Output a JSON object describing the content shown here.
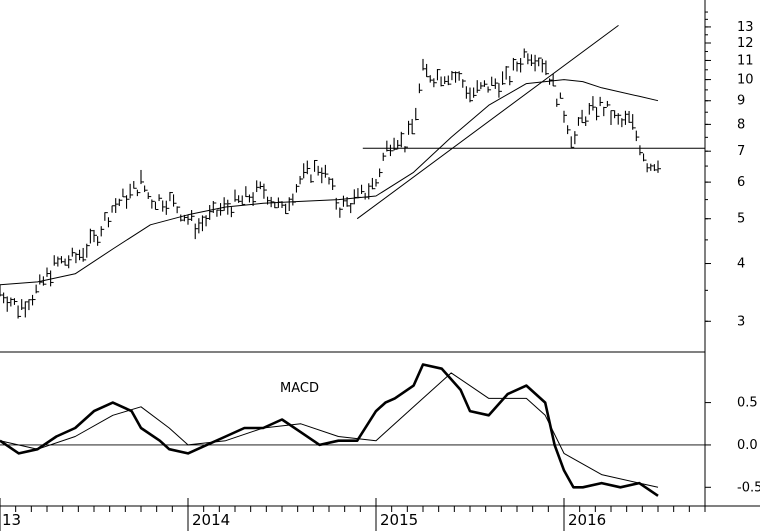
{
  "chart_data": [
    {
      "type": "bar",
      "subtype": "ohlc-price",
      "scale": "log",
      "ylim": [
        2.6,
        14.5
      ],
      "yticks": [
        "13",
        "12",
        "11",
        "10",
        "9",
        "8",
        "7",
        "6",
        "5",
        "4",
        "3"
      ],
      "x_labels": [
        "13",
        "2014",
        "2015",
        "2016"
      ],
      "x_label_pos": [
        2013.0,
        2014.0,
        2015.0,
        2016.0
      ],
      "xlim": [
        2013.0,
        2016.75
      ],
      "series": [
        {
          "role": "price",
          "x": [
            2013.0,
            2013.1,
            2013.2,
            2013.3,
            2013.4,
            2013.5,
            2013.6,
            2013.7,
            2013.75,
            2013.8,
            2013.9,
            2014.0,
            2014.05,
            2014.1,
            2014.2,
            2014.3,
            2014.4,
            2014.5,
            2014.6,
            2014.7,
            2014.75,
            2014.8,
            2014.9,
            2015.0,
            2015.05,
            2015.1,
            2015.15,
            2015.2,
            2015.25,
            2015.3,
            2015.4,
            2015.45,
            2015.5,
            2015.6,
            2015.7,
            2015.8,
            2015.85,
            2015.9,
            2015.95,
            2016.0,
            2016.05,
            2016.1,
            2016.2,
            2016.3,
            2016.35,
            2016.4,
            2016.45,
            2016.5
          ],
          "values": [
            3.5,
            3.2,
            3.5,
            4.0,
            4.1,
            4.5,
            5.3,
            5.7,
            6.0,
            5.5,
            5.5,
            5.0,
            4.8,
            5.0,
            5.3,
            5.5,
            5.8,
            5.2,
            6.1,
            6.5,
            6.0,
            5.3,
            5.5,
            6.0,
            7.0,
            7.6,
            7.2,
            8.0,
            10.4,
            10.2,
            10.3,
            10.0,
            9.3,
            9.7,
            10.0,
            11.5,
            11.3,
            10.8,
            9.5,
            8.5,
            7.3,
            8.3,
            8.8,
            8.0,
            8.2,
            7.3,
            6.5,
            6.7
          ]
        },
        {
          "role": "moving-average",
          "x": [
            2013.0,
            2013.2,
            2013.4,
            2013.6,
            2013.8,
            2014.0,
            2014.2,
            2014.4,
            2014.6,
            2014.8,
            2015.0,
            2015.2,
            2015.4,
            2015.6,
            2015.8,
            2016.0,
            2016.1,
            2016.2,
            2016.4,
            2016.5
          ],
          "values": [
            3.6,
            3.65,
            3.8,
            4.3,
            4.85,
            5.1,
            5.3,
            5.4,
            5.45,
            5.5,
            5.6,
            6.3,
            7.5,
            8.8,
            9.8,
            10.0,
            9.9,
            9.6,
            9.2,
            9.0
          ]
        },
        {
          "role": "trendline",
          "x": [
            2014.9,
            2016.29
          ],
          "values": [
            5.0,
            13.1
          ]
        },
        {
          "role": "resistance",
          "x": [
            2014.93,
            2016.75
          ],
          "values": [
            7.1,
            7.1
          ]
        }
      ]
    },
    {
      "type": "line",
      "title": "MACD",
      "ylim": [
        -0.65,
        1.05
      ],
      "yticks": [
        "0.5",
        "0.0",
        "-0.5"
      ],
      "ytick_vals": [
        0.5,
        0.0,
        -0.5
      ],
      "xlim": [
        2013.0,
        2016.75
      ],
      "series": [
        {
          "role": "macd",
          "x": [
            2013.0,
            2013.1,
            2013.2,
            2013.3,
            2013.4,
            2013.5,
            2013.6,
            2013.7,
            2013.75,
            2013.85,
            2013.9,
            2014.0,
            2014.1,
            2014.2,
            2014.3,
            2014.4,
            2014.5,
            2014.6,
            2014.7,
            2014.8,
            2014.9,
            2015.0,
            2015.05,
            2015.1,
            2015.2,
            2015.25,
            2015.35,
            2015.45,
            2015.5,
            2015.6,
            2015.7,
            2015.8,
            2015.9,
            2015.95,
            2016.0,
            2016.05,
            2016.1,
            2016.2,
            2016.3,
            2016.4,
            2016.5
          ],
          "values": [
            0.05,
            -0.1,
            -0.05,
            0.1,
            0.2,
            0.4,
            0.5,
            0.4,
            0.2,
            0.05,
            -0.05,
            -0.1,
            0.0,
            0.1,
            0.2,
            0.2,
            0.3,
            0.15,
            0.0,
            0.05,
            0.05,
            0.4,
            0.5,
            0.55,
            0.7,
            0.95,
            0.9,
            0.65,
            0.4,
            0.35,
            0.6,
            0.7,
            0.5,
            0.0,
            -0.3,
            -0.5,
            -0.5,
            -0.45,
            -0.5,
            -0.45,
            -0.6
          ]
        },
        {
          "role": "signal",
          "x": [
            2013.0,
            2013.2,
            2013.4,
            2013.6,
            2013.75,
            2013.9,
            2014.0,
            2014.2,
            2014.4,
            2014.6,
            2014.8,
            2015.0,
            2015.2,
            2015.4,
            2015.6,
            2015.8,
            2015.9,
            2016.0,
            2016.2,
            2016.4,
            2016.5
          ],
          "values": [
            0.05,
            -0.05,
            0.1,
            0.35,
            0.45,
            0.2,
            0.0,
            0.05,
            0.2,
            0.25,
            0.1,
            0.05,
            0.45,
            0.85,
            0.55,
            0.55,
            0.35,
            -0.1,
            -0.35,
            -0.45,
            -0.5
          ]
        }
      ]
    }
  ]
}
